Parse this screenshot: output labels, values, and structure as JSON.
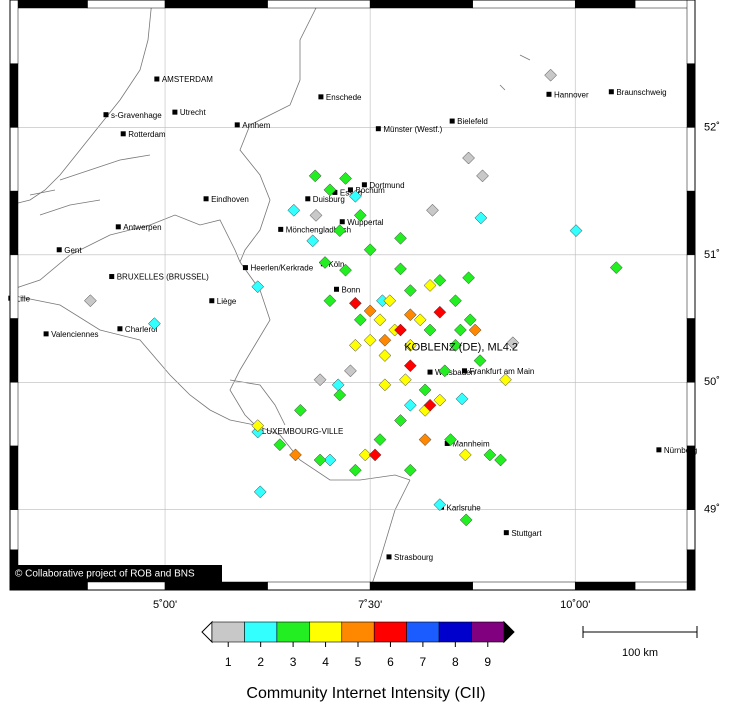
{
  "map": {
    "lon_range": [
      3.11,
      11.46
    ],
    "lat_range": [
      48.37,
      53.0
    ],
    "lon_ticks": [
      {
        "value": 5,
        "label": "5˚00'"
      },
      {
        "value": 7.5,
        "label": "7˚30'"
      },
      {
        "value": 10,
        "label": "10˚00'"
      }
    ],
    "lat_ticks": [
      {
        "value": 49,
        "label": "49˚"
      },
      {
        "value": 50,
        "label": "50˚"
      },
      {
        "value": 51,
        "label": "51˚"
      },
      {
        "value": 52,
        "label": "52˚"
      }
    ],
    "grid": true,
    "cities": [
      {
        "name": "AMSTERDAM",
        "lon": 4.9,
        "lat": 52.38
      },
      {
        "name": "s-Gravenhage",
        "lon": 4.28,
        "lat": 52.1
      },
      {
        "name": "Utrecht",
        "lon": 5.12,
        "lat": 52.12
      },
      {
        "name": "Rotterdam",
        "lon": 4.49,
        "lat": 51.95
      },
      {
        "name": "Arnhem",
        "lon": 5.88,
        "lat": 52.02
      },
      {
        "name": "Enschede",
        "lon": 6.9,
        "lat": 52.24
      },
      {
        "name": "Münster (Westf.)",
        "lon": 7.6,
        "lat": 51.99
      },
      {
        "name": "Bielefeld",
        "lon": 8.5,
        "lat": 52.05
      },
      {
        "name": "Hannover",
        "lon": 9.68,
        "lat": 52.26
      },
      {
        "name": "Braunschweig",
        "lon": 10.44,
        "lat": 52.28
      },
      {
        "name": "Dortmund",
        "lon": 7.43,
        "lat": 51.55
      },
      {
        "name": "Bochum",
        "lon": 7.26,
        "lat": 51.51
      },
      {
        "name": "Essen",
        "lon": 7.07,
        "lat": 51.49
      },
      {
        "name": "Duisburg",
        "lon": 6.74,
        "lat": 51.44
      },
      {
        "name": "Wuppertal",
        "lon": 7.16,
        "lat": 51.26
      },
      {
        "name": "Eindhoven",
        "lon": 5.5,
        "lat": 51.44
      },
      {
        "name": "Antwerpen",
        "lon": 4.43,
        "lat": 51.22
      },
      {
        "name": "Gent",
        "lon": 3.71,
        "lat": 51.04
      },
      {
        "name": "Mönchengladbach",
        "lon": 6.41,
        "lat": 51.2
      },
      {
        "name": "Heerlen/Kerkrade",
        "lon": 5.98,
        "lat": 50.9
      },
      {
        "name": "Köln",
        "lon": 6.93,
        "lat": 50.93
      },
      {
        "name": "Bonn",
        "lon": 7.09,
        "lat": 50.73
      },
      {
        "name": "BRUXELLES (BRUSSEL)",
        "lon": 4.35,
        "lat": 50.83
      },
      {
        "name": "Liège",
        "lon": 5.57,
        "lat": 50.64
      },
      {
        "name": "Lille",
        "lon": 3.12,
        "lat": 50.66
      },
      {
        "name": "Charleroi",
        "lon": 4.45,
        "lat": 50.42
      },
      {
        "name": "Valenciennes",
        "lon": 3.55,
        "lat": 50.38
      },
      {
        "name": "Wiesbaden",
        "lon": 8.23,
        "lat": 50.08
      },
      {
        "name": "Frankfurt am Main",
        "lon": 8.65,
        "lat": 50.09
      },
      {
        "name": "LUXEMBOURG-VILLE",
        "lon": 6.12,
        "lat": 49.62
      },
      {
        "name": "Mannheim",
        "lon": 8.44,
        "lat": 49.52
      },
      {
        "name": "Karlsruhe",
        "lon": 8.37,
        "lat": 49.02
      },
      {
        "name": "Stuttgart",
        "lon": 9.16,
        "lat": 48.82
      },
      {
        "name": "Strasbourg",
        "lon": 7.73,
        "lat": 48.63
      },
      {
        "name": "Nürnberg",
        "lon": 11.02,
        "lat": 49.47
      }
    ],
    "epicenter": {
      "label": "KOBLENZ (DE), ML4.2",
      "lon": 7.6,
      "lat": 50.36
    },
    "reports": [
      {
        "lon": 9.7,
        "lat": 52.41,
        "cii": 1
      },
      {
        "lon": 8.7,
        "lat": 51.76,
        "cii": 1
      },
      {
        "lon": 8.87,
        "lat": 51.62,
        "cii": 1
      },
      {
        "lon": 8.26,
        "lat": 51.35,
        "cii": 1
      },
      {
        "lon": 4.09,
        "lat": 50.64,
        "cii": 1
      },
      {
        "lon": 9.24,
        "lat": 50.31,
        "cii": 1
      },
      {
        "lon": 6.89,
        "lat": 50.02,
        "cii": 1
      },
      {
        "lon": 6.84,
        "lat": 51.31,
        "cii": 1
      },
      {
        "lon": 7.26,
        "lat": 50.09,
        "cii": 1
      },
      {
        "lon": 10.01,
        "lat": 51.19,
        "cii": 2
      },
      {
        "lon": 8.85,
        "lat": 51.29,
        "cii": 2
      },
      {
        "lon": 6.57,
        "lat": 51.35,
        "cii": 2
      },
      {
        "lon": 7.32,
        "lat": 51.46,
        "cii": 2
      },
      {
        "lon": 6.13,
        "lat": 50.75,
        "cii": 2
      },
      {
        "lon": 4.87,
        "lat": 50.46,
        "cii": 2
      },
      {
        "lon": 6.16,
        "lat": 49.14,
        "cii": 2
      },
      {
        "lon": 8.35,
        "lat": 49.04,
        "cii": 2
      },
      {
        "lon": 8.62,
        "lat": 49.87,
        "cii": 2
      },
      {
        "lon": 6.8,
        "lat": 51.11,
        "cii": 2
      },
      {
        "lon": 7.11,
        "lat": 49.98,
        "cii": 2
      },
      {
        "lon": 6.13,
        "lat": 49.61,
        "cii": 2
      },
      {
        "lon": 7.65,
        "lat": 50.64,
        "cii": 2
      },
      {
        "lon": 7.99,
        "lat": 49.82,
        "cii": 2
      },
      {
        "lon": 7.01,
        "lat": 49.39,
        "cii": 2
      },
      {
        "lon": 10.5,
        "lat": 50.9,
        "cii": 3
      },
      {
        "lon": 8.67,
        "lat": 48.92,
        "cii": 3
      },
      {
        "lon": 8.7,
        "lat": 50.82,
        "cii": 3
      },
      {
        "lon": 7.87,
        "lat": 51.13,
        "cii": 3
      },
      {
        "lon": 7.2,
        "lat": 51.6,
        "cii": 3
      },
      {
        "lon": 7.01,
        "lat": 51.51,
        "cii": 3
      },
      {
        "lon": 7.38,
        "lat": 51.31,
        "cii": 3
      },
      {
        "lon": 7.5,
        "lat": 51.04,
        "cii": 3
      },
      {
        "lon": 6.95,
        "lat": 50.94,
        "cii": 3
      },
      {
        "lon": 7.2,
        "lat": 50.88,
        "cii": 3
      },
      {
        "lon": 7.87,
        "lat": 50.89,
        "cii": 3
      },
      {
        "lon": 7.99,
        "lat": 50.72,
        "cii": 3
      },
      {
        "lon": 8.35,
        "lat": 50.8,
        "cii": 3
      },
      {
        "lon": 8.54,
        "lat": 50.64,
        "cii": 3
      },
      {
        "lon": 8.72,
        "lat": 50.49,
        "cii": 3
      },
      {
        "lon": 8.54,
        "lat": 50.29,
        "cii": 3
      },
      {
        "lon": 8.84,
        "lat": 50.17,
        "cii": 3
      },
      {
        "lon": 8.41,
        "lat": 50.09,
        "cii": 3
      },
      {
        "lon": 8.17,
        "lat": 49.94,
        "cii": 3
      },
      {
        "lon": 7.87,
        "lat": 49.7,
        "cii": 3
      },
      {
        "lon": 7.62,
        "lat": 49.55,
        "cii": 3
      },
      {
        "lon": 6.65,
        "lat": 49.78,
        "cii": 3
      },
      {
        "lon": 6.4,
        "lat": 49.51,
        "cii": 3
      },
      {
        "lon": 6.89,
        "lat": 49.39,
        "cii": 3
      },
      {
        "lon": 7.32,
        "lat": 49.31,
        "cii": 3
      },
      {
        "lon": 7.99,
        "lat": 49.31,
        "cii": 3
      },
      {
        "lon": 8.48,
        "lat": 49.55,
        "cii": 3
      },
      {
        "lon": 8.96,
        "lat": 49.43,
        "cii": 3
      },
      {
        "lon": 9.09,
        "lat": 49.39,
        "cii": 3
      },
      {
        "lon": 7.13,
        "lat": 49.9,
        "cii": 3
      },
      {
        "lon": 7.01,
        "lat": 50.64,
        "cii": 3
      },
      {
        "lon": 7.38,
        "lat": 50.49,
        "cii": 3
      },
      {
        "lon": 8.23,
        "lat": 50.41,
        "cii": 3
      },
      {
        "lon": 8.6,
        "lat": 50.41,
        "cii": 3
      },
      {
        "lon": 6.83,
        "lat": 51.62,
        "cii": 3
      },
      {
        "lon": 7.13,
        "lat": 51.19,
        "cii": 3
      },
      {
        "lon": 7.62,
        "lat": 50.49,
        "cii": 4
      },
      {
        "lon": 7.8,
        "lat": 50.41,
        "cii": 4
      },
      {
        "lon": 7.5,
        "lat": 50.33,
        "cii": 4
      },
      {
        "lon": 7.68,
        "lat": 50.21,
        "cii": 4
      },
      {
        "lon": 7.99,
        "lat": 50.29,
        "cii": 4
      },
      {
        "lon": 8.11,
        "lat": 50.49,
        "cii": 4
      },
      {
        "lon": 7.93,
        "lat": 50.02,
        "cii": 4
      },
      {
        "lon": 8.17,
        "lat": 49.78,
        "cii": 4
      },
      {
        "lon": 8.35,
        "lat": 49.86,
        "cii": 4
      },
      {
        "lon": 8.66,
        "lat": 49.43,
        "cii": 4
      },
      {
        "lon": 9.15,
        "lat": 50.02,
        "cii": 4
      },
      {
        "lon": 7.44,
        "lat": 49.43,
        "cii": 4
      },
      {
        "lon": 6.13,
        "lat": 49.66,
        "cii": 4
      },
      {
        "lon": 7.32,
        "lat": 50.29,
        "cii": 4
      },
      {
        "lon": 8.23,
        "lat": 50.76,
        "cii": 4
      },
      {
        "lon": 7.74,
        "lat": 50.64,
        "cii": 4
      },
      {
        "lon": 7.68,
        "lat": 49.98,
        "cii": 4
      },
      {
        "lon": 7.68,
        "lat": 50.33,
        "cii": 5
      },
      {
        "lon": 7.99,
        "lat": 50.53,
        "cii": 5
      },
      {
        "lon": 8.78,
        "lat": 50.41,
        "cii": 5
      },
      {
        "lon": 8.17,
        "lat": 49.55,
        "cii": 5
      },
      {
        "lon": 6.59,
        "lat": 49.43,
        "cii": 5
      },
      {
        "lon": 7.5,
        "lat": 50.56,
        "cii": 5
      },
      {
        "lon": 7.87,
        "lat": 50.41,
        "cii": 6
      },
      {
        "lon": 7.99,
        "lat": 50.13,
        "cii": 6
      },
      {
        "lon": 7.32,
        "lat": 50.62,
        "cii": 6
      },
      {
        "lon": 8.35,
        "lat": 50.55,
        "cii": 6
      },
      {
        "lon": 7.56,
        "lat": 49.43,
        "cii": 6
      },
      {
        "lon": 8.23,
        "lat": 49.82,
        "cii": 6
      }
    ],
    "colorbar": {
      "title": "Community Internet Intensity (CII)",
      "levels": [
        1,
        2,
        3,
        4,
        5,
        6,
        7,
        8,
        9
      ],
      "colors": [
        "#c8c8c8",
        "#33ffff",
        "#22ee22",
        "#ffff00",
        "#ff8800",
        "#ff0000",
        "#1a5cff",
        "#0000cc",
        "#800080"
      ]
    },
    "scalebar": {
      "label": "100 km"
    },
    "copyright": "© Collaborative project of ROB and BNS"
  }
}
